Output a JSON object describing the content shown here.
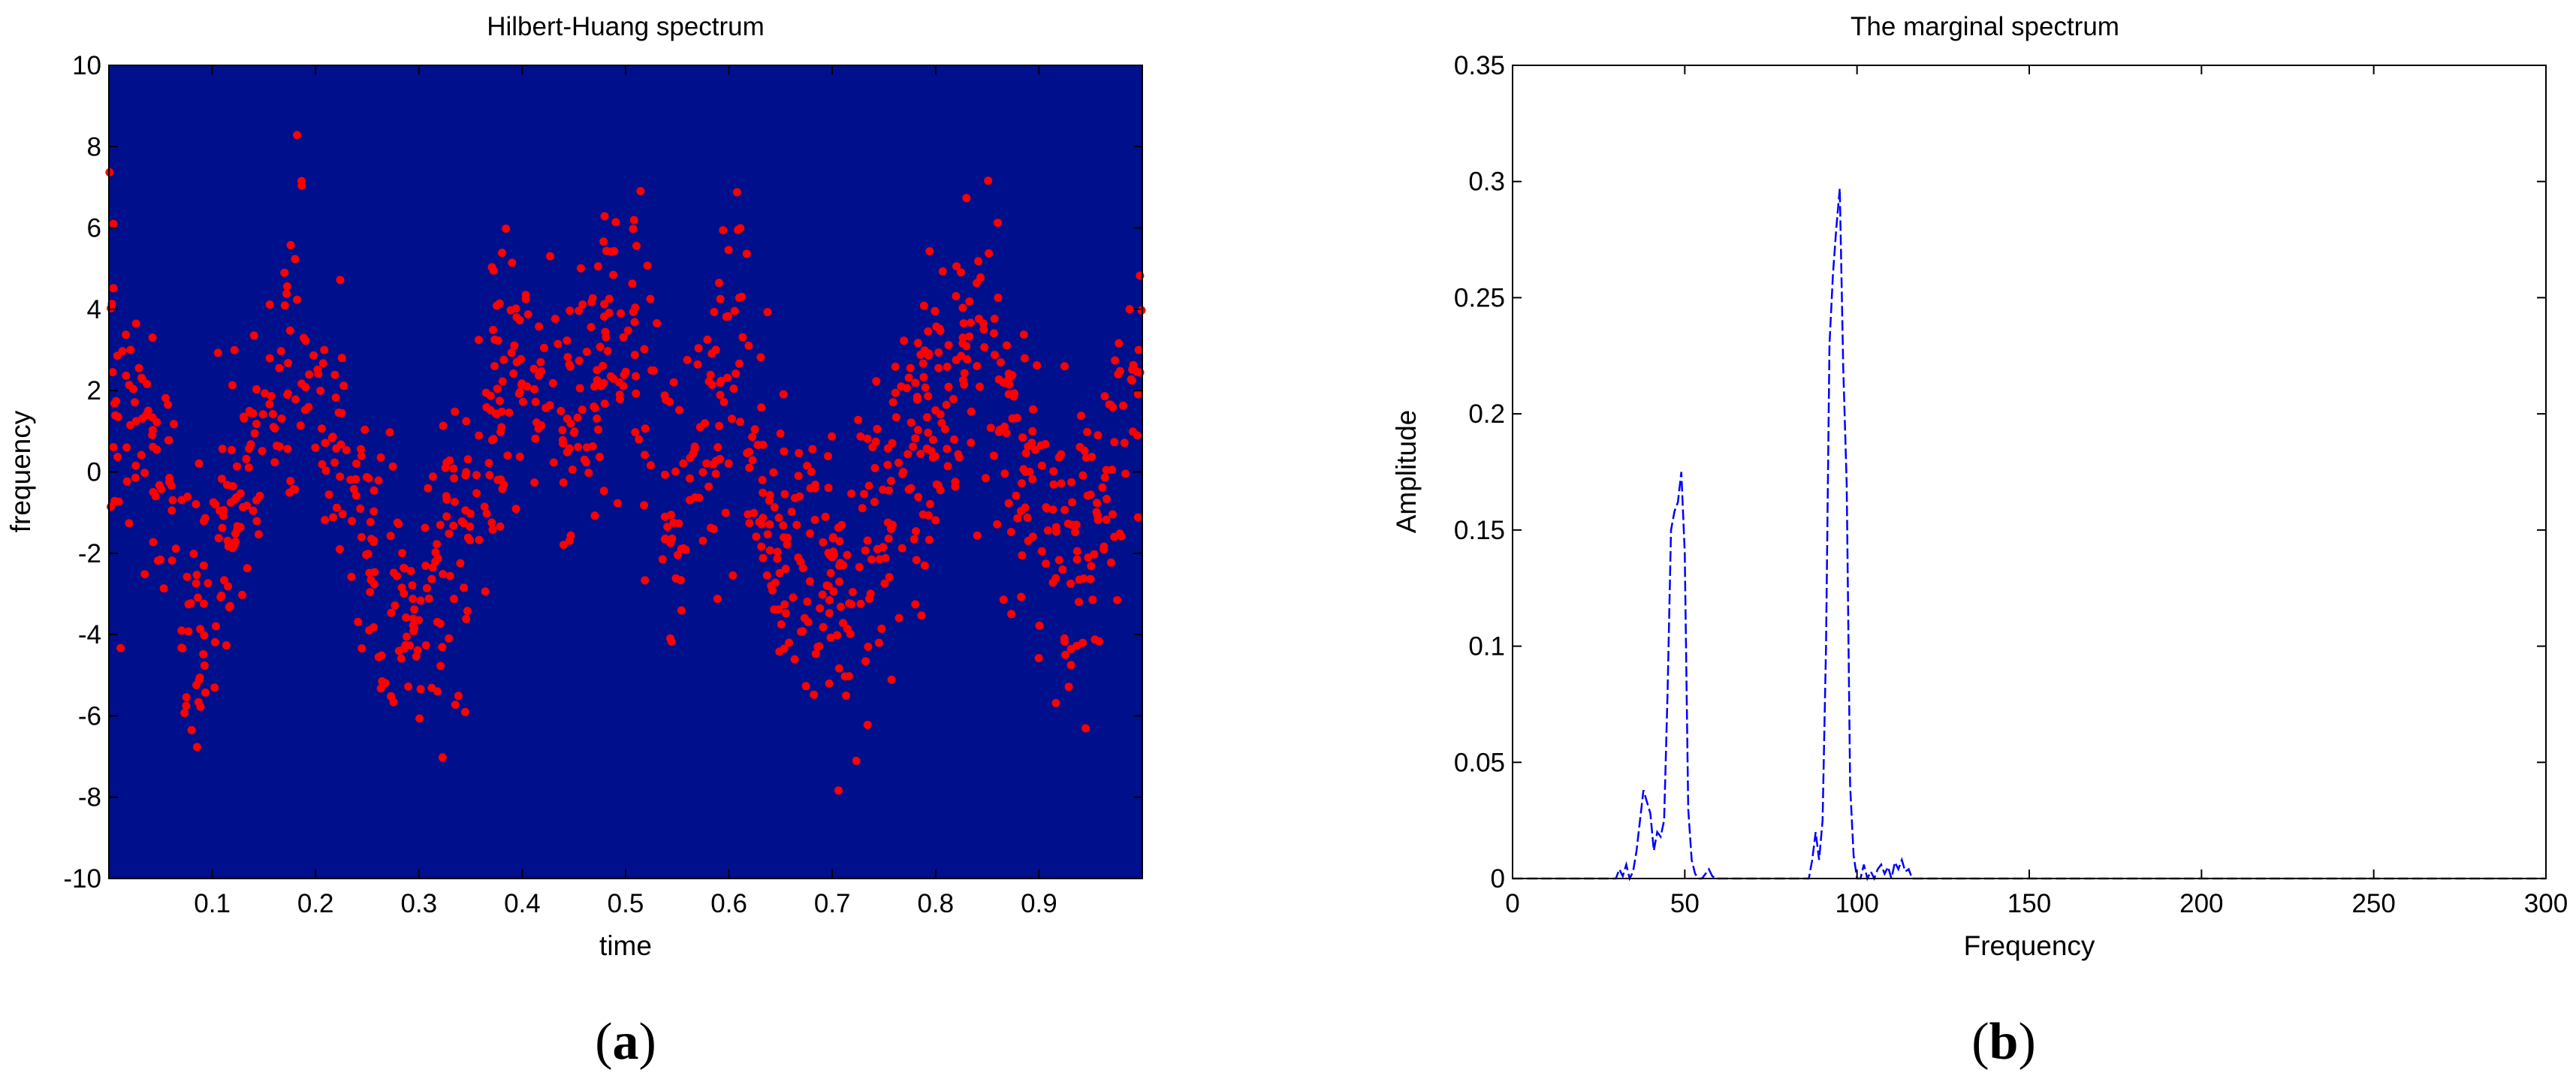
{
  "chart_data": [
    {
      "type": "scatter",
      "title": "Hilbert-Huang spectrum",
      "xlabel": "time",
      "ylabel": "frequency",
      "xlim": [
        0,
        1
      ],
      "ylim": [
        -10,
        10
      ],
      "x_ticks": [
        "0.1",
        "0.2",
        "0.3",
        "0.4",
        "0.5",
        "0.6",
        "0.7",
        "0.8",
        "0.9"
      ],
      "y_ticks": [
        "-10",
        "-8",
        "-6",
        "-4",
        "-2",
        "0",
        "2",
        "4",
        "6",
        "8",
        "10"
      ],
      "grid": false,
      "background_color": "#000f8c",
      "point_color": "#ff0000",
      "trend_x": [
        0.0,
        0.04,
        0.09,
        0.14,
        0.19,
        0.24,
        0.29,
        0.34,
        0.39,
        0.44,
        0.5,
        0.55,
        0.6,
        0.65,
        0.72,
        0.77,
        0.83,
        0.88,
        0.93,
        1.0
      ],
      "trend_y": [
        2.5,
        0.5,
        -4.0,
        0.5,
        3.0,
        -1.5,
        -4.0,
        -2.0,
        2.5,
        1.0,
        4.0,
        -1.5,
        3.0,
        -1.5,
        -3.0,
        0.0,
        3.0,
        1.0,
        -3.0,
        3.0
      ],
      "spread": 1.8,
      "point_count": 1100,
      "caption": "(a)",
      "caption_letter": "a"
    },
    {
      "type": "line",
      "title": "The marginal spectrum",
      "xlabel": "Frequency",
      "ylabel": "Amplitude",
      "xlim": [
        0,
        300
      ],
      "ylim": [
        0,
        0.35
      ],
      "x_ticks": [
        "0",
        "50",
        "100",
        "150",
        "200",
        "250",
        "300"
      ],
      "y_ticks": [
        "0",
        "0.05",
        "0.1",
        "0.15",
        "0.2",
        "0.25",
        "0.3",
        "0.35"
      ],
      "grid": false,
      "line_color": "#0000ff",
      "x": [
        0,
        30,
        31,
        32,
        33,
        34,
        35,
        36,
        37,
        38,
        39,
        40,
        41,
        42,
        43,
        44,
        45,
        46,
        47,
        48,
        49,
        50,
        51,
        52,
        53,
        54,
        55,
        56,
        57,
        58,
        59,
        60,
        86,
        87,
        88,
        89,
        90,
        91,
        92,
        93,
        94,
        95,
        96,
        97,
        98,
        99,
        100,
        101,
        102,
        103,
        104,
        105,
        106,
        107,
        108,
        109,
        110,
        111,
        112,
        113,
        114,
        115,
        116,
        117,
        120,
        300
      ],
      "y": [
        0,
        0,
        0.004,
        0.001,
        0.006,
        0,
        0.003,
        0.012,
        0.025,
        0.038,
        0.033,
        0.028,
        0.012,
        0.02,
        0.018,
        0.025,
        0.08,
        0.15,
        0.158,
        0.162,
        0.175,
        0.14,
        0.03,
        0.008,
        0.002,
        0,
        0,
        0.002,
        0.004,
        0.001,
        0,
        0,
        0,
        0.008,
        0.02,
        0.008,
        0.025,
        0.1,
        0.23,
        0.26,
        0.28,
        0.297,
        0.22,
        0.17,
        0.04,
        0.01,
        0,
        0,
        0.006,
        0,
        0.003,
        0,
        0.004,
        0.006,
        0.002,
        0.005,
        0,
        0.007,
        0.004,
        0.008,
        0.003,
        0.004,
        0,
        0,
        0,
        0
      ],
      "caption": "(b)",
      "caption_letter": "b"
    }
  ]
}
